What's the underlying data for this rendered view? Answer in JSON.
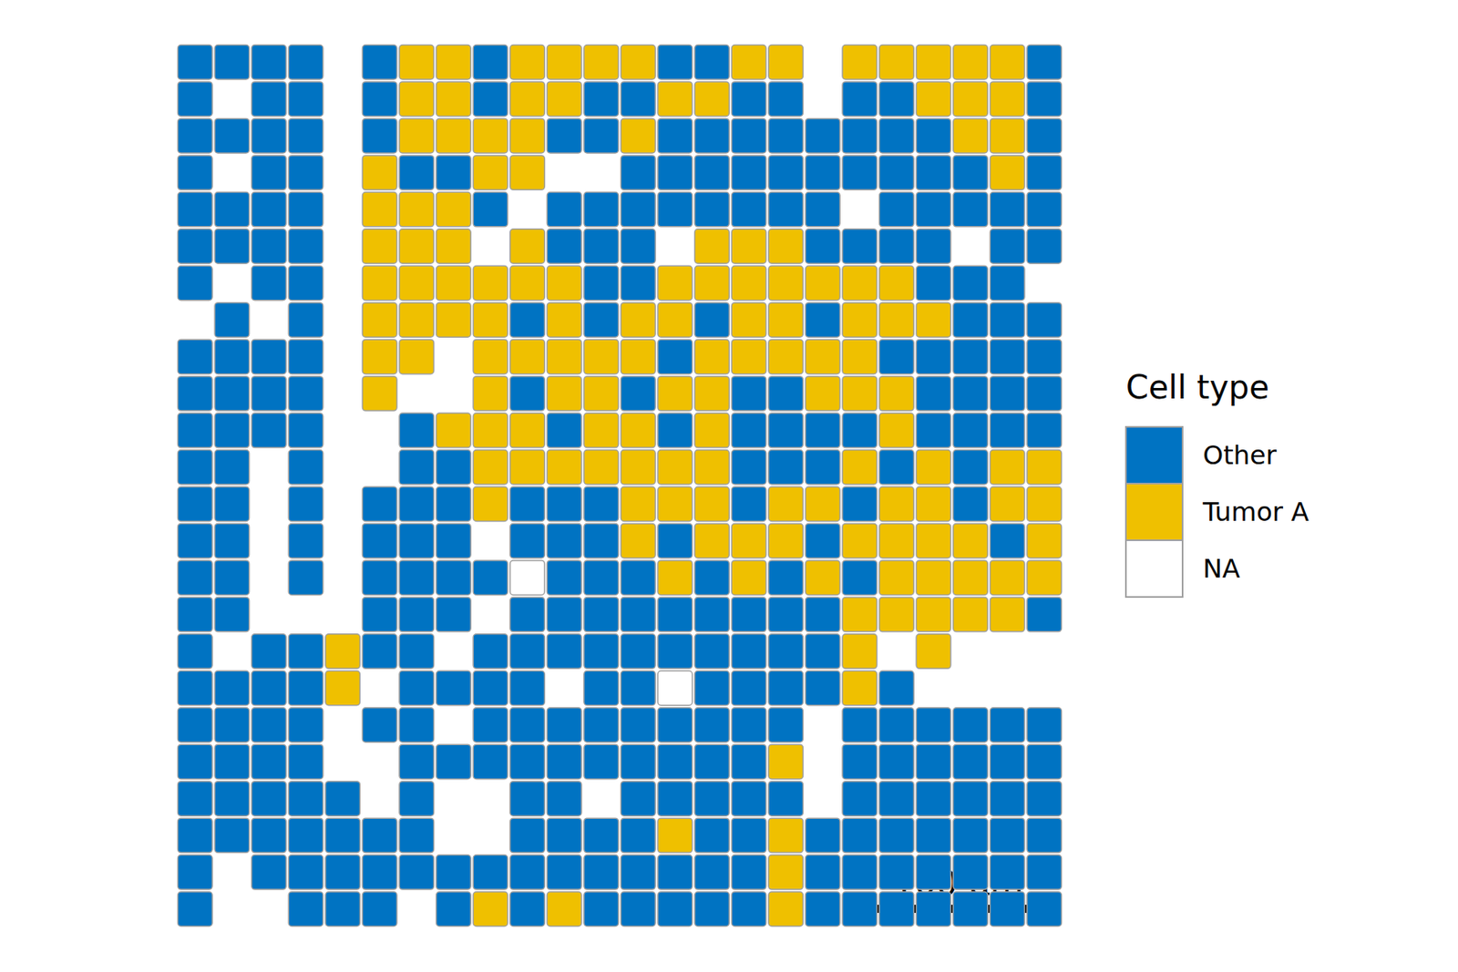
{
  "chart_data": {
    "type": "spatial",
    "legend_title": "Cell type",
    "categories": [
      "Other",
      "Tumor A",
      "NA"
    ],
    "colors": [
      "#0073C2",
      "#EFC000",
      "#FFFFFF"
    ],
    "xlim": [
      0,
      510
    ],
    "ylim": [
      0,
      510
    ],
    "tick_labels": false,
    "grid": false,
    "cell_size": 21.25,
    "scale_bar": {
      "length": 100,
      "label": "100 µm"
    },
    "cells": [
      [
        0,
        0,
        0,
        0,
        null,
        0,
        1,
        1,
        0,
        1,
        1,
        1,
        1,
        0,
        0,
        1,
        1,
        null,
        1,
        1,
        1,
        1,
        1,
        0
      ],
      [
        0,
        null,
        0,
        0,
        null,
        0,
        1,
        1,
        0,
        1,
        1,
        0,
        0,
        1,
        1,
        0,
        0,
        null,
        0,
        0,
        1,
        1,
        1,
        0
      ],
      [
        0,
        0,
        0,
        0,
        null,
        0,
        1,
        1,
        1,
        1,
        0,
        0,
        1,
        0,
        0,
        0,
        0,
        0,
        0,
        0,
        0,
        1,
        1,
        0
      ],
      [
        0,
        null,
        0,
        0,
        null,
        1,
        0,
        0,
        1,
        1,
        null,
        null,
        0,
        0,
        0,
        0,
        0,
        0,
        0,
        0,
        0,
        0,
        1,
        0
      ],
      [
        0,
        0,
        0,
        0,
        null,
        1,
        1,
        1,
        0,
        null,
        0,
        0,
        0,
        0,
        0,
        0,
        0,
        0,
        null,
        0,
        0,
        0,
        0,
        0
      ],
      [
        0,
        0,
        0,
        0,
        null,
        1,
        1,
        1,
        null,
        1,
        0,
        0,
        0,
        null,
        1,
        1,
        1,
        0,
        0,
        0,
        0,
        null,
        0,
        0
      ],
      [
        0,
        null,
        0,
        0,
        null,
        1,
        1,
        1,
        1,
        1,
        1,
        0,
        0,
        1,
        1,
        1,
        1,
        1,
        1,
        1,
        0,
        0,
        0,
        null
      ],
      [
        null,
        0,
        null,
        0,
        null,
        1,
        1,
        1,
        1,
        0,
        1,
        0,
        1,
        1,
        0,
        1,
        1,
        0,
        1,
        1,
        1,
        0,
        0,
        0
      ],
      [
        0,
        0,
        0,
        0,
        null,
        1,
        1,
        null,
        1,
        1,
        1,
        1,
        1,
        0,
        1,
        1,
        1,
        1,
        1,
        0,
        0,
        0,
        0,
        0
      ],
      [
        0,
        0,
        0,
        0,
        null,
        1,
        null,
        null,
        1,
        0,
        1,
        1,
        0,
        1,
        1,
        0,
        0,
        1,
        1,
        1,
        0,
        0,
        0,
        0
      ],
      [
        0,
        0,
        0,
        0,
        null,
        null,
        0,
        1,
        1,
        1,
        0,
        1,
        1,
        0,
        1,
        0,
        0,
        0,
        0,
        1,
        0,
        0,
        0,
        0
      ],
      [
        0,
        0,
        null,
        0,
        null,
        null,
        0,
        0,
        1,
        1,
        1,
        1,
        1,
        1,
        1,
        0,
        0,
        0,
        1,
        0,
        1,
        0,
        1,
        1
      ],
      [
        0,
        0,
        null,
        0,
        null,
        0,
        0,
        0,
        1,
        0,
        0,
        0,
        1,
        1,
        1,
        0,
        1,
        1,
        0,
        1,
        1,
        0,
        1,
        1
      ],
      [
        0,
        0,
        null,
        0,
        null,
        0,
        0,
        0,
        null,
        0,
        0,
        0,
        1,
        0,
        1,
        1,
        1,
        0,
        1,
        1,
        1,
        1,
        0,
        1
      ],
      [
        0,
        0,
        null,
        0,
        null,
        0,
        0,
        0,
        0,
        2,
        0,
        0,
        0,
        1,
        0,
        1,
        0,
        1,
        0,
        1,
        1,
        1,
        1,
        1
      ],
      [
        0,
        0,
        null,
        null,
        null,
        0,
        0,
        0,
        null,
        0,
        0,
        0,
        0,
        0,
        0,
        0,
        0,
        0,
        1,
        1,
        1,
        1,
        1,
        0
      ],
      [
        0,
        null,
        0,
        0,
        1,
        0,
        0,
        null,
        0,
        0,
        0,
        0,
        0,
        0,
        0,
        0,
        0,
        0,
        1,
        null,
        1,
        null,
        null,
        null
      ],
      [
        0,
        0,
        0,
        0,
        1,
        null,
        0,
        0,
        0,
        0,
        null,
        0,
        0,
        2,
        0,
        0,
        0,
        0,
        1,
        0,
        null,
        null,
        null,
        null
      ],
      [
        0,
        0,
        0,
        0,
        null,
        0,
        0,
        null,
        0,
        0,
        0,
        0,
        0,
        0,
        0,
        0,
        0,
        null,
        0,
        0,
        0,
        0,
        0,
        0
      ],
      [
        0,
        0,
        0,
        0,
        null,
        null,
        0,
        0,
        0,
        0,
        0,
        0,
        0,
        0,
        0,
        0,
        1,
        null,
        0,
        0,
        0,
        0,
        0,
        0
      ],
      [
        0,
        0,
        0,
        0,
        0,
        null,
        0,
        null,
        null,
        0,
        0,
        null,
        0,
        0,
        0,
        0,
        0,
        null,
        0,
        0,
        0,
        0,
        0,
        0
      ],
      [
        0,
        0,
        0,
        0,
        0,
        0,
        0,
        null,
        null,
        0,
        0,
        0,
        0,
        1,
        0,
        0,
        1,
        0,
        0,
        0,
        0,
        0,
        0,
        0
      ],
      [
        0,
        null,
        0,
        0,
        0,
        0,
        0,
        0,
        0,
        0,
        0,
        0,
        0,
        0,
        0,
        0,
        1,
        0,
        0,
        0,
        0,
        0,
        0,
        0
      ],
      [
        0,
        null,
        null,
        0,
        0,
        0,
        null,
        0,
        1,
        0,
        1,
        0,
        0,
        0,
        0,
        0,
        1,
        0,
        0,
        0,
        0,
        0,
        0,
        0
      ]
    ]
  }
}
